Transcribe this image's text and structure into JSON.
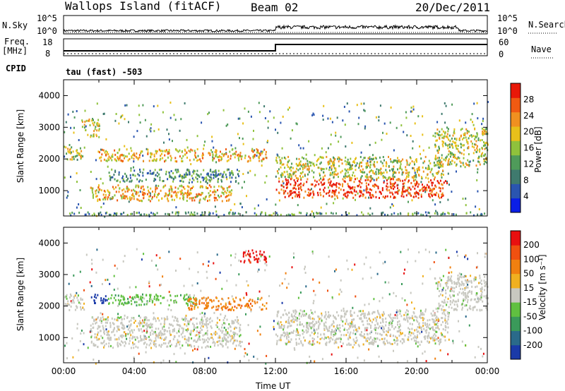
{
  "header": {
    "title": "Wallops Island (fitACF)",
    "beam": "Beam 02",
    "date": "20/Dec/2011"
  },
  "top_panels": {
    "nsky_label": "N.Sky",
    "nsky_ticks": [
      "10^5",
      "10^0"
    ],
    "nsearch_label": "N.Search",
    "nsearch_ticks": [
      "10^5",
      "10^0"
    ],
    "freq_label": "Freq.",
    "freq_unit": "[MHz]",
    "freq_ticks": [
      "18",
      "8"
    ],
    "nave_label": "Nave",
    "nave_ticks": [
      "60",
      "0"
    ],
    "cpid_label": "CPID",
    "cpid_text": "tau (fast) -503"
  },
  "chart_data": [
    {
      "type": "heatmap",
      "name": "power",
      "ylabel": "Slant Range [km]",
      "yticks": [
        "4000",
        "3000",
        "2000",
        "1000"
      ],
      "ylim": [
        200,
        4500
      ],
      "xlim": [
        0,
        24
      ],
      "colorbar": {
        "label": "Power [dB]",
        "ticks": [
          "28",
          "24",
          "20",
          "16",
          "12",
          "8",
          "4"
        ],
        "colors": [
          "#0a1ee6",
          "#2a55b0",
          "#3f7a6e",
          "#4f9b5a",
          "#8fc23c",
          "#e8c01a",
          "#f09020",
          "#f05a12",
          "#e81808"
        ]
      },
      "regions": [
        {
          "t0": 0.0,
          "t1": 1.2,
          "r0": 2000,
          "r1": 2400,
          "level": "mid"
        },
        {
          "t0": 1.0,
          "t1": 2.0,
          "r0": 2700,
          "r1": 3300,
          "level": "mid"
        },
        {
          "t0": 2.0,
          "t1": 11.5,
          "r0": 1950,
          "r1": 2350,
          "level": "high"
        },
        {
          "t0": 1.5,
          "t1": 9.5,
          "r0": 700,
          "r1": 1200,
          "level": "high"
        },
        {
          "t0": 2.5,
          "t1": 10.0,
          "r0": 1300,
          "r1": 1700,
          "level": "low"
        },
        {
          "t0": 12.0,
          "t1": 21.8,
          "r0": 800,
          "r1": 1400,
          "level": "max"
        },
        {
          "t0": 12.0,
          "t1": 21.5,
          "r0": 1400,
          "r1": 2100,
          "level": "mid"
        },
        {
          "t0": 21.0,
          "t1": 24.0,
          "r0": 1800,
          "r1": 3000,
          "level": "mid"
        },
        {
          "t0": 0.0,
          "t1": 24.0,
          "r0": 250,
          "r1": 350,
          "level": "low"
        }
      ]
    },
    {
      "type": "heatmap",
      "name": "velocity",
      "ylabel": "Slant Range [km]",
      "yticks": [
        "4000",
        "3000",
        "2000",
        "1000"
      ],
      "ylim": [
        200,
        4500
      ],
      "xlim": [
        0,
        24
      ],
      "xlabel": "Time UT",
      "xticks": [
        "00:00",
        "04:00",
        "08:00",
        "12:00",
        "16:00",
        "20:00",
        "00:00"
      ],
      "colorbar": {
        "label": "Velocity [m s⁻¹]",
        "ticks": [
          "200",
          "100",
          "50",
          "15",
          "-15",
          "-50",
          "-100",
          "-200"
        ],
        "colors": [
          "#1a3aa8",
          "#2a6a8a",
          "#3a9a5a",
          "#60c040",
          "#c8c8c0",
          "#f0b020",
          "#f08010",
          "#f05010",
          "#e81010"
        ]
      },
      "regions": [
        {
          "t0": 0.0,
          "t1": 1.2,
          "r0": 1900,
          "r1": 2400,
          "v": "gray"
        },
        {
          "t0": 1.5,
          "t1": 2.5,
          "r0": 2100,
          "r1": 2400,
          "v": "blue"
        },
        {
          "t0": 2.5,
          "t1": 7.5,
          "r0": 2050,
          "r1": 2400,
          "v": "green"
        },
        {
          "t0": 7.0,
          "t1": 11.5,
          "r0": 1900,
          "r1": 2300,
          "v": "orange"
        },
        {
          "t0": 1.5,
          "t1": 10.0,
          "r0": 700,
          "r1": 1700,
          "v": "gray"
        },
        {
          "t0": 12.0,
          "t1": 21.8,
          "r0": 800,
          "r1": 1900,
          "v": "gray"
        },
        {
          "t0": 21.0,
          "t1": 24.0,
          "r0": 1900,
          "r1": 3000,
          "v": "gray"
        },
        {
          "t0": 10.0,
          "t1": 11.5,
          "r0": 3400,
          "r1": 3800,
          "v": "red"
        }
      ]
    }
  ]
}
